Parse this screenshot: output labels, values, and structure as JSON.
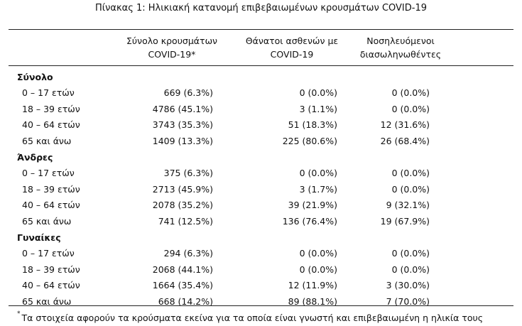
{
  "title": "Πίνακας 1: Ηλικιακή κατανομή επιβεβαιωμένων κρουσμάτων COVID-19",
  "columns": [
    {
      "line1": "Σύνολο κρουσμάτων",
      "line2": "COVID-19*"
    },
    {
      "line1": "Θάνατοι ασθενών με",
      "line2": "COVID-19"
    },
    {
      "line1": "Νοσηλευόμενοι",
      "line2": "διασωληνωθέντες"
    }
  ],
  "sections": [
    {
      "name": "Σύνολο",
      "rows": [
        {
          "label": "0 – 17 ετών",
          "cases": "669 (6.3%)",
          "deaths": "0 (0.0%)",
          "intubated": "0 (0.0%)"
        },
        {
          "label": "18 – 39 ετών",
          "cases": "4786 (45.1%)",
          "deaths": "3 (1.1%)",
          "intubated": "0 (0.0%)"
        },
        {
          "label": "40 – 64 ετών",
          "cases": "3743 (35.3%)",
          "deaths": "51 (18.3%)",
          "intubated": "12 (31.6%)"
        },
        {
          "label": "65 και άνω",
          "cases": "1409 (13.3%)",
          "deaths": "225 (80.6%)",
          "intubated": "26 (68.4%)"
        }
      ]
    },
    {
      "name": "Άνδρες",
      "rows": [
        {
          "label": "0 – 17 ετών",
          "cases": "375 (6.3%)",
          "deaths": "0 (0.0%)",
          "intubated": "0 (0.0%)"
        },
        {
          "label": "18 – 39 ετών",
          "cases": "2713 (45.9%)",
          "deaths": "3 (1.7%)",
          "intubated": "0 (0.0%)"
        },
        {
          "label": "40 – 64 ετών",
          "cases": "2078 (35.2%)",
          "deaths": "39 (21.9%)",
          "intubated": "9 (32.1%)"
        },
        {
          "label": "65 και άνω",
          "cases": "741 (12.5%)",
          "deaths": "136 (76.4%)",
          "intubated": "19 (67.9%)"
        }
      ]
    },
    {
      "name": "Γυναίκες",
      "rows": [
        {
          "label": "0 – 17 ετών",
          "cases": "294 (6.3%)",
          "deaths": "0 (0.0%)",
          "intubated": "0 (0.0%)"
        },
        {
          "label": "18 – 39 ετών",
          "cases": "2068 (44.1%)",
          "deaths": "0 (0.0%)",
          "intubated": "0 (0.0%)"
        },
        {
          "label": "40 – 64 ετών",
          "cases": "1664 (35.4%)",
          "deaths": "12 (11.9%)",
          "intubated": "3 (30.0%)"
        },
        {
          "label": "65 και άνω",
          "cases": "668 (14.2%)",
          "deaths": "89 (88.1%)",
          "intubated": "7 (70.0%)"
        }
      ]
    }
  ],
  "footnote": {
    "marker": "*",
    "text": "Τα στοιχεία αφορούν τα κρούσματα εκείνα για τα οποία είναι γνωστή και επιβεβαιωμένη η ηλικία τους"
  }
}
